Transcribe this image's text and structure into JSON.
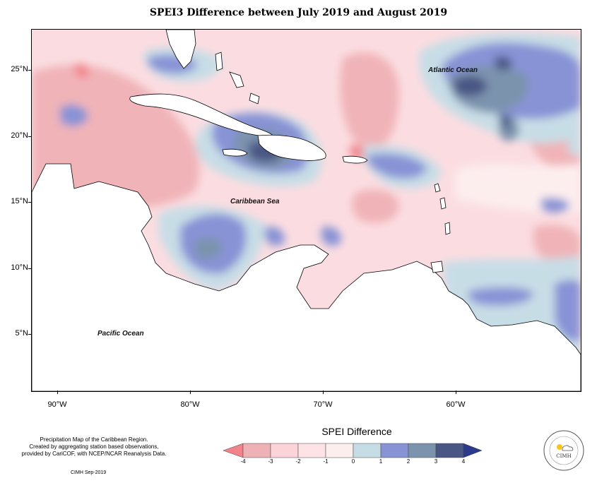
{
  "title": "SPEI3 Difference between July 2019 and August 2019",
  "map": {
    "lat_labels": [
      "25°N",
      "20°N",
      "15°N",
      "10°N",
      "5°N"
    ],
    "lon_labels": [
      "90°W",
      "80°W",
      "70°W",
      "60°W"
    ],
    "ocean_labels": {
      "atlantic": "Atlantic Ocean",
      "caribbean": "Caribbean Sea",
      "pacific": "Pacific Ocean"
    }
  },
  "footer": {
    "line1": "Precipitation Map of the Caribbean Region.",
    "line2": "Created by aggregating station based observations,",
    "line3": "provided by CariCOF, with NCEP/NCAR Reanalysis Data.",
    "credit": "CIMH Sep-2019"
  },
  "legend": {
    "title": "SPEI Difference",
    "ticks": [
      "-4",
      "-3",
      "-2",
      "-1",
      "0",
      "1",
      "2",
      "3",
      "4"
    ],
    "colors": [
      "#f2838b",
      "#eeb1b5",
      "#fbd3d8",
      "#fdeeee",
      "#c7dde6",
      "#8893d6",
      "#7c93ad",
      "#4a5784",
      "#2b3a8c"
    ]
  },
  "logo": {
    "text": "CIMH"
  }
}
